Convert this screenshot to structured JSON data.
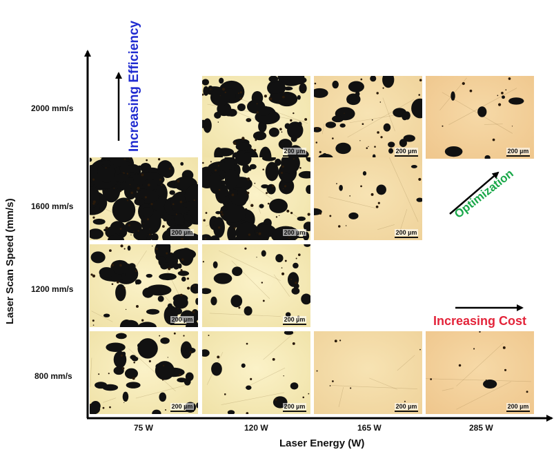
{
  "axes": {
    "y_label": "Laser Scan Speed (mm/s)",
    "x_label": "Laser Energy (W)",
    "y_ticks": [
      "2000 mm/s",
      "1600 mm/s",
      "1200 mm/s",
      "800 mm/s"
    ],
    "x_ticks": [
      "75 W",
      "120 W",
      "165 W",
      "285 W"
    ]
  },
  "annotations": {
    "efficiency": "Increasing Efficiency",
    "optimization": "Optimization",
    "cost": "Increasing Cost"
  },
  "scale_bar": "200 µm",
  "colors": {
    "efficiency": "#1f2bd0",
    "optimization": "#1aa84a",
    "cost": "#e3243a",
    "axis": "#000000"
  },
  "micrographs": [
    {
      "speed": "2000 mm/s",
      "power": "120 W",
      "porosity": 0.38
    },
    {
      "speed": "2000 mm/s",
      "power": "165 W",
      "porosity": 0.2
    },
    {
      "speed": "2000 mm/s",
      "power": "285 W",
      "porosity": 0.04
    },
    {
      "speed": "1600 mm/s",
      "power": "75 W",
      "porosity": 0.62
    },
    {
      "speed": "1600 mm/s",
      "power": "120 W",
      "porosity": 0.48
    },
    {
      "speed": "1600 mm/s",
      "power": "165 W",
      "porosity": 0.05
    },
    {
      "speed": "1200 mm/s",
      "power": "75 W",
      "porosity": 0.35
    },
    {
      "speed": "1200 mm/s",
      "power": "120 W",
      "porosity": 0.12
    },
    {
      "speed": "800 mm/s",
      "power": "75 W",
      "porosity": 0.22
    },
    {
      "speed": "800 mm/s",
      "power": "120 W",
      "porosity": 0.06
    },
    {
      "speed": "800 mm/s",
      "power": "165 W",
      "porosity": 0.0
    },
    {
      "speed": "800 mm/s",
      "power": "285 W",
      "porosity": 0.005
    }
  ]
}
